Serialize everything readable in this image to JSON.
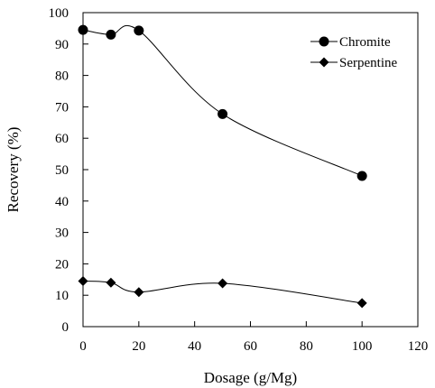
{
  "chart_data": {
    "type": "line",
    "title": "",
    "xlabel": "Dosage (g/Mg)",
    "ylabel": "Recovery (%)",
    "xlim": [
      0,
      120
    ],
    "ylim": [
      0,
      100
    ],
    "xticks": [
      0,
      20,
      40,
      60,
      80,
      100,
      120
    ],
    "yticks": [
      0,
      10,
      20,
      30,
      40,
      50,
      60,
      70,
      80,
      90,
      100
    ],
    "grid": false,
    "legend_position": "top-right",
    "series": [
      {
        "name": "Chromite",
        "marker": "circle",
        "color": "#000000",
        "x": [
          0,
          10,
          20,
          50,
          100
        ],
        "y": [
          94.5,
          93.0,
          94.3,
          67.7,
          48.0
        ]
      },
      {
        "name": "Serpentine",
        "marker": "diamond",
        "color": "#000000",
        "x": [
          0,
          10,
          20,
          50,
          100
        ],
        "y": [
          14.5,
          14.0,
          11.0,
          13.8,
          7.5
        ]
      }
    ]
  }
}
